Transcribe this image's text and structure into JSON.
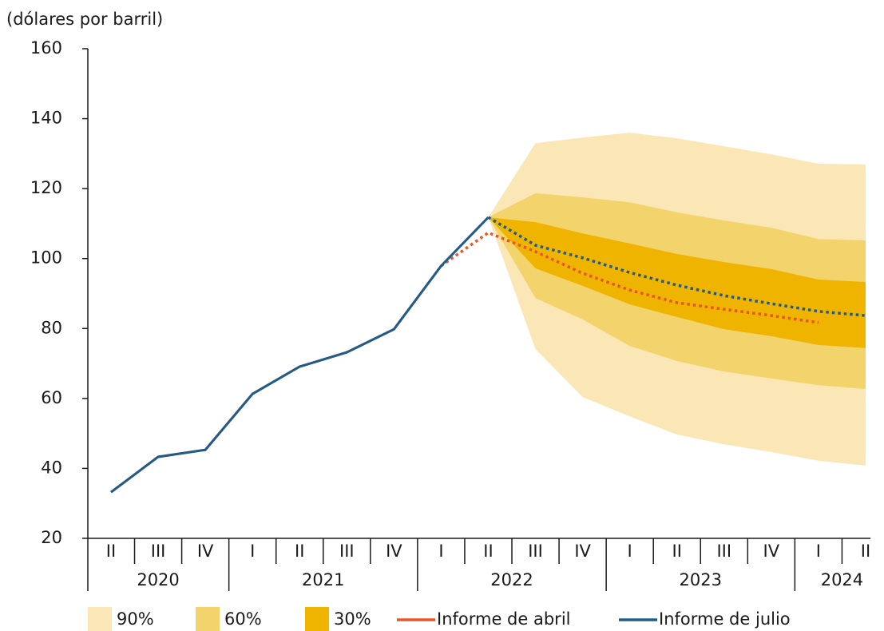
{
  "chart_data": {
    "type": "fan",
    "y_label": "(dólares por barril)",
    "ylim": [
      20,
      160
    ],
    "yticks": [
      20,
      40,
      60,
      80,
      100,
      120,
      140,
      160
    ],
    "groups": [
      {
        "label": "2020",
        "categories": [
          "II",
          "III",
          "IV"
        ]
      },
      {
        "label": "2021",
        "categories": [
          "I",
          "II",
          "III",
          "IV"
        ]
      },
      {
        "label": "2022",
        "categories": [
          "I",
          "II",
          "III",
          "IV"
        ]
      },
      {
        "label": "2023",
        "categories": [
          "I",
          "II",
          "III",
          "IV"
        ]
      },
      {
        "label": "2024",
        "categories": [
          "I",
          "II"
        ]
      }
    ],
    "bands": [
      {
        "name": "90%",
        "color": "#fae7b5",
        "upper": [
          null,
          null,
          null,
          null,
          null,
          null,
          null,
          null,
          111.8,
          133.0,
          134.6,
          136.0,
          134.4,
          132.1,
          129.8,
          127.1,
          126.9
        ],
        "lower": [
          null,
          null,
          null,
          null,
          null,
          null,
          null,
          null,
          111.8,
          74.1,
          60.4,
          54.9,
          49.7,
          46.9,
          44.7,
          42.2,
          40.8
        ]
      },
      {
        "name": "60%",
        "color": "#f3d36b",
        "upper": [
          null,
          null,
          null,
          null,
          null,
          null,
          null,
          null,
          111.8,
          118.7,
          117.5,
          116.1,
          113.2,
          110.9,
          108.8,
          105.6,
          105.2
        ],
        "lower": [
          null,
          null,
          null,
          null,
          null,
          null,
          null,
          null,
          111.8,
          88.7,
          82.6,
          75.0,
          70.7,
          67.7,
          65.7,
          63.8,
          62.7
        ]
      },
      {
        "name": "30%",
        "color": "#eeb400",
        "upper": [
          null,
          null,
          null,
          null,
          null,
          null,
          null,
          null,
          111.8,
          110.4,
          107.2,
          104.3,
          101.3,
          99.0,
          97.0,
          94.0,
          93.3
        ],
        "lower": [
          null,
          null,
          null,
          null,
          null,
          null,
          null,
          null,
          111.8,
          97.2,
          92.2,
          86.9,
          83.3,
          79.8,
          77.8,
          75.3,
          74.4
        ]
      }
    ],
    "series": [
      {
        "name": "Informe de abril",
        "color": "#e8552a",
        "dotted_from": 7,
        "values": [
          33.2,
          43.3,
          45.3,
          61.3,
          69.1,
          73.2,
          79.8,
          97.9,
          107.4,
          102.0,
          95.8,
          91.0,
          87.4,
          85.5,
          83.7,
          81.7,
          null
        ]
      },
      {
        "name": "Informe de julio",
        "color": "#1f5c8b",
        "dotted_from": 8,
        "values": [
          33.2,
          43.3,
          45.3,
          61.3,
          69.1,
          73.2,
          79.8,
          97.9,
          111.8,
          103.8,
          100.2,
          96.0,
          92.4,
          89.4,
          87.1,
          84.9,
          83.7
        ]
      }
    ]
  }
}
